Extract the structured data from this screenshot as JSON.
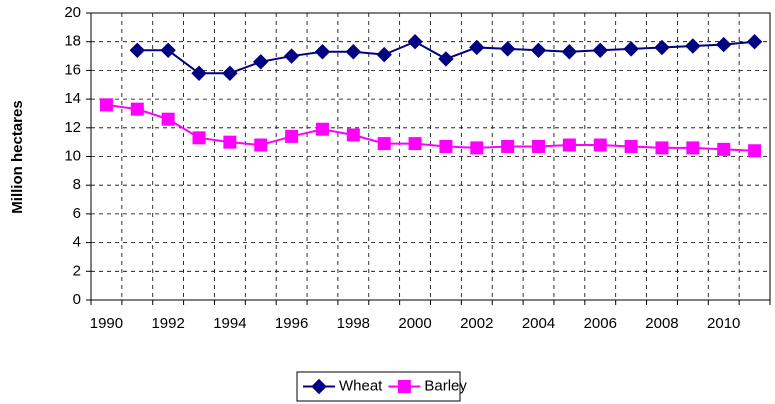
{
  "chart_data": {
    "type": "line",
    "y_label": "Million hectares",
    "categories": [
      "1990",
      null,
      "1992",
      null,
      "1994",
      null,
      "1996",
      null,
      "1998",
      null,
      "2000",
      null,
      "2002",
      null,
      "2004",
      null,
      "2006",
      null,
      "2008",
      null,
      "2010",
      null
    ],
    "series": [
      {
        "name": "Wheat",
        "color": "#000080",
        "marker": "diamond",
        "values": [
          null,
          17.4,
          17.4,
          15.8,
          15.8,
          16.6,
          17.0,
          17.3,
          17.3,
          17.1,
          18.0,
          16.8,
          17.6,
          17.5,
          17.4,
          17.3,
          17.4,
          17.5,
          17.6,
          17.7,
          17.8,
          18.0
        ]
      },
      {
        "name": "Barley",
        "color": "#ff00ff",
        "marker": "square",
        "values": [
          13.6,
          13.3,
          12.6,
          11.3,
          11.0,
          10.8,
          11.4,
          11.9,
          11.5,
          10.9,
          10.9,
          10.7,
          10.6,
          10.7,
          10.7,
          10.8,
          10.8,
          10.7,
          10.6,
          10.6,
          10.5,
          10.4
        ]
      }
    ],
    "ylim": [
      0,
      20
    ],
    "yticks": [
      0,
      2,
      4,
      6,
      8,
      10,
      12,
      14,
      16,
      18,
      20
    ],
    "grid": true,
    "legend": "bottom"
  }
}
